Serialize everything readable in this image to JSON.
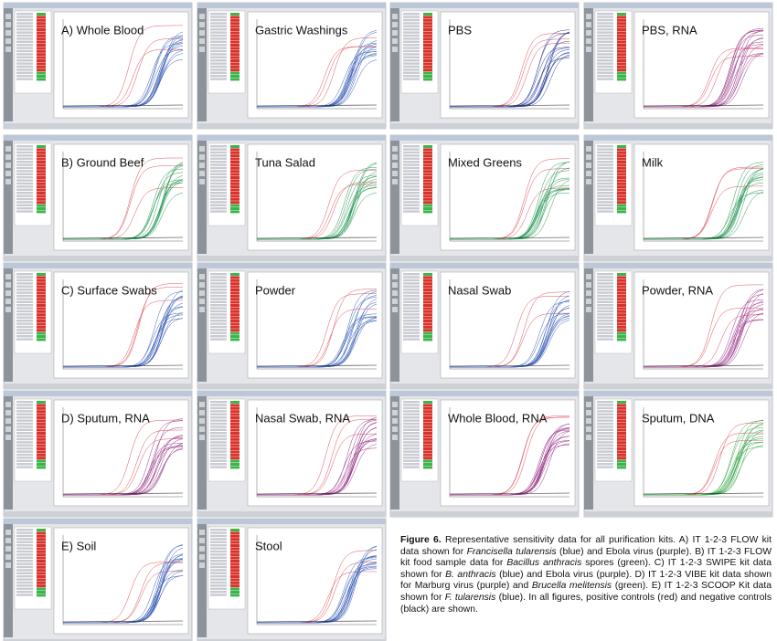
{
  "panels": [
    {
      "label": "A) Whole Blood",
      "curve_color": "#3a5fb8"
    },
    {
      "label": "Gastric Washings",
      "curve_color": "#3a5fb8"
    },
    {
      "label": "PBS",
      "curve_color": "#2a3f9a"
    },
    {
      "label": "PBS, RNA",
      "curve_color": "#9a3a8a"
    },
    {
      "label": "B) Ground Beef",
      "curve_color": "#2e9a5a"
    },
    {
      "label": "Tuna Salad",
      "curve_color": "#2e9a5a"
    },
    {
      "label": "Mixed Greens",
      "curve_color": "#2e9a5a"
    },
    {
      "label": "Milk",
      "curve_color": "#2e9a5a"
    },
    {
      "label": "C) Surface Swabs",
      "curve_color": "#3a5fb8"
    },
    {
      "label": "Powder",
      "curve_color": "#3a5fb8"
    },
    {
      "label": "Nasal Swab",
      "curve_color": "#3a5fb8"
    },
    {
      "label": "Powder, RNA",
      "curve_color": "#9a3a8a"
    },
    {
      "label": "D) Sputum, RNA",
      "curve_color": "#9a3a8a"
    },
    {
      "label": "Nasal Swab, RNA",
      "curve_color": "#9a3a8a"
    },
    {
      "label": "Whole Blood, RNA",
      "curve_color": "#9a3a8a"
    },
    {
      "label": "Sputum, DNA",
      "curve_color": "#3aa84a"
    },
    {
      "label": "E) Soil",
      "curve_color": "#3a5fb8"
    },
    {
      "label": "Stool",
      "curve_color": "#3a5fb8"
    }
  ],
  "caption": {
    "runs": [
      {
        "text": "Figure 6.",
        "bold": true
      },
      {
        "text": " Representative sensitivity data for all purification kits. A) IT 1-2-3 FLOW kit data shown for "
      },
      {
        "text": "Francisella tularensis",
        "italic": true
      },
      {
        "text": " (blue) and Ebola virus (purple). B) IT 1-2-3 FLOW kit food sample data for "
      },
      {
        "text": "Bacillus anthracis",
        "italic": true
      },
      {
        "text": " spores (green). C) IT 1-2-3 SWIPE kit data shown for "
      },
      {
        "text": "B. anthracis",
        "italic": true
      },
      {
        "text": " (blue) and Ebola virus (purple). D) IT 1-2-3 VIBE kit data shown for Marburg virus (purple) and "
      },
      {
        "text": "Brucella melitensis",
        "italic": true
      },
      {
        "text": " (green). E) IT 1-2-3 SCOOP Kit data shown for "
      },
      {
        "text": "F. tularensis",
        "italic": true
      },
      {
        "text": " (blue). In all figures, positive controls (red) and negative controls (black) are shown."
      }
    ]
  }
}
